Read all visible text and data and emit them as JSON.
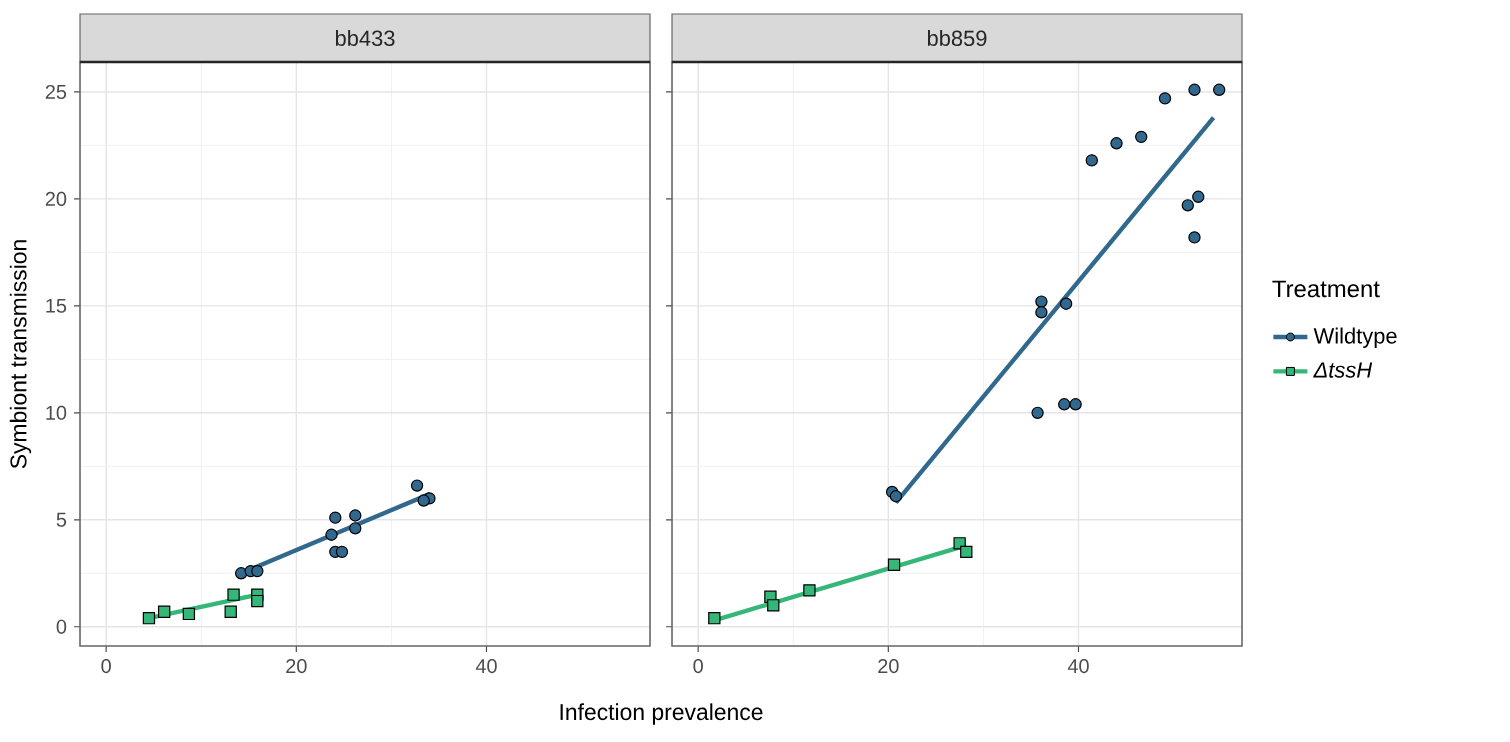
{
  "chart_data": [
    {
      "type": "scatter",
      "title": "bb433",
      "xlabel": "Infection prevalence",
      "ylabel": "Symbiont transmission",
      "xlim": [
        -2.75,
        57.2
      ],
      "ylim": [
        -0.9,
        26.4
      ],
      "xticks": [
        0,
        20,
        40
      ],
      "yticks": [
        0,
        5,
        10,
        15,
        20,
        25
      ],
      "grid": true,
      "legend": false,
      "series": [
        {
          "type": "scatter",
          "marker": "circle",
          "color": "#31688e",
          "x": [
            14.2,
            15.2,
            15.9,
            24.1,
            26.2,
            23.7,
            24.1,
            24.8,
            26.2,
            32.7,
            34.0,
            33.4
          ],
          "values": [
            2.5,
            2.6,
            2.6,
            5.1,
            5.2,
            4.3,
            3.5,
            3.5,
            4.6,
            6.6,
            6.0,
            5.9
          ]
        },
        {
          "type": "scatter",
          "marker": "square",
          "color": "#35b779",
          "x": [
            4.5,
            6.1,
            8.7,
            13.1,
            13.4,
            15.9,
            15.9
          ],
          "values": [
            0.4,
            0.7,
            0.6,
            0.7,
            1.5,
            1.5,
            1.2
          ]
        },
        {
          "type": "line",
          "color": "#31688e",
          "x": [
            14.2,
            34.0
          ],
          "values": [
            2.5,
            6.2
          ]
        },
        {
          "type": "line",
          "color": "#35b779",
          "x": [
            4.5,
            15.9
          ],
          "values": [
            0.4,
            1.5
          ]
        }
      ]
    },
    {
      "type": "scatter",
      "title": "bb859",
      "xlim": [
        -2.75,
        57.2
      ],
      "ylim": [
        -0.9,
        26.4
      ],
      "xticks": [
        0,
        20,
        40
      ],
      "yticks": [
        0,
        5,
        10,
        15,
        20,
        25
      ],
      "grid": true,
      "tick_labels": "x",
      "legend": "right",
      "legend_title": "Treatment",
      "series": [
        {
          "type": "scatter",
          "name": "Wildtype",
          "marker": "circle",
          "color": "#31688e",
          "x": [
            20.4,
            20.8,
            36.1,
            36.1,
            38.7,
            35.7,
            38.5,
            39.7,
            41.4,
            44.0,
            46.6,
            49.1,
            52.2,
            54.8,
            51.5,
            52.6,
            52.2
          ],
          "values": [
            6.3,
            6.1,
            15.2,
            14.7,
            15.1,
            10.0,
            10.4,
            10.4,
            21.8,
            22.6,
            22.9,
            24.7,
            25.1,
            25.1,
            19.7,
            20.1,
            18.2
          ]
        },
        {
          "type": "scatter",
          "name": "*ΔtssH*",
          "marker": "square",
          "color": "#35b779",
          "x": [
            1.7,
            7.6,
            7.9,
            11.7,
            20.6,
            27.5,
            28.2
          ],
          "values": [
            0.4,
            1.4,
            1.0,
            1.7,
            2.9,
            3.9,
            3.5
          ]
        },
        {
          "type": "line",
          "color": "#31688e",
          "x": [
            20.8,
            54.2
          ],
          "values": [
            5.8,
            23.8
          ]
        },
        {
          "type": "line",
          "color": "#35b779",
          "x": [
            1.7,
            28.2
          ],
          "values": [
            0.3,
            3.8
          ]
        }
      ]
    }
  ]
}
